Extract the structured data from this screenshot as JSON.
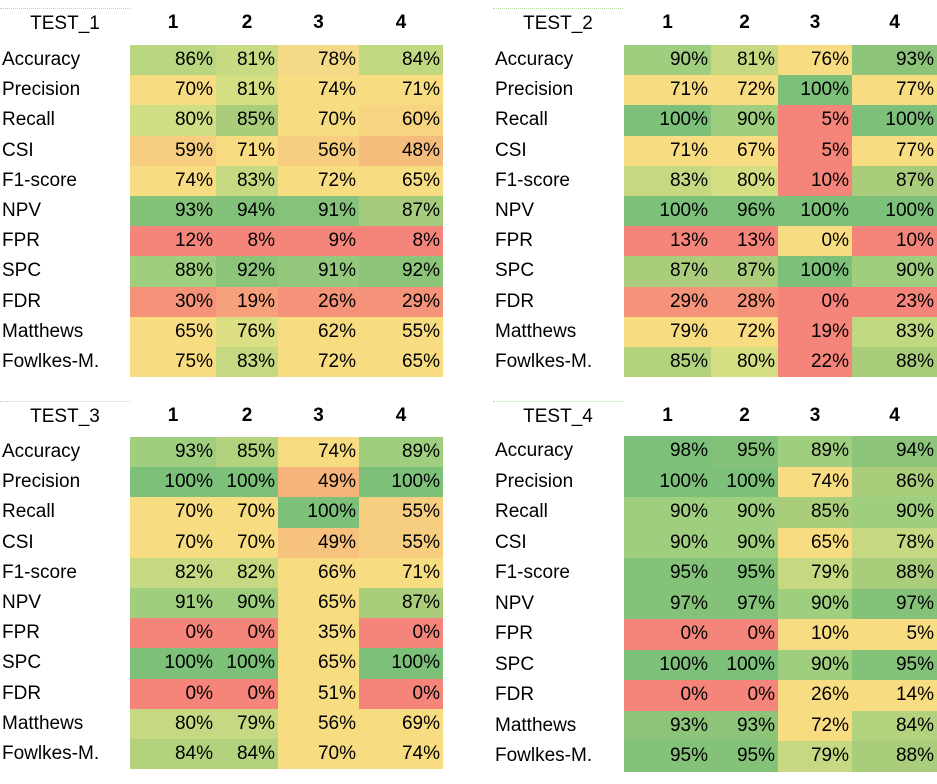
{
  "columns": [
    "1",
    "2",
    "3",
    "4"
  ],
  "colors": {
    "green_strong": "#7cc07a",
    "green": "#9fce7f",
    "yellow_green": "#c6dc84",
    "yellow": "#f8dc82",
    "orange": "#f7b47a",
    "red": "#f5857a"
  },
  "panels": [
    {
      "title": "TEST_1",
      "rows": [
        {
          "label": "Accuracy",
          "values": [
            "86%",
            "81%",
            "78%",
            "84%"
          ]
        },
        {
          "label": "Precision",
          "values": [
            "70%",
            "81%",
            "74%",
            "71%"
          ]
        },
        {
          "label": "Recall",
          "values": [
            "80%",
            "85%",
            "70%",
            "60%"
          ]
        },
        {
          "label": "CSI",
          "values": [
            "59%",
            "71%",
            "56%",
            "48%"
          ]
        },
        {
          "label": "F1-score",
          "values": [
            "74%",
            "83%",
            "72%",
            "65%"
          ]
        },
        {
          "label": "NPV",
          "values": [
            "93%",
            "94%",
            "91%",
            "87%"
          ]
        },
        {
          "label": "FPR",
          "values": [
            "12%",
            "8%",
            "9%",
            "8%"
          ]
        },
        {
          "label": "SPC",
          "values": [
            "88%",
            "92%",
            "91%",
            "92%"
          ]
        },
        {
          "label": "FDR",
          "values": [
            "30%",
            "19%",
            "26%",
            "29%"
          ]
        },
        {
          "label": "Matthews",
          "values": [
            "65%",
            "76%",
            "62%",
            "55%"
          ]
        },
        {
          "label": "Fowlkes-M.",
          "values": [
            "75%",
            "83%",
            "72%",
            "65%"
          ]
        }
      ],
      "cell_colors": [
        [
          "#b9d680",
          "#c7db82",
          "#f4d986",
          "#c0d880"
        ],
        [
          "#f8dc82",
          "#d6de84",
          "#f8dc82",
          "#f8dc82"
        ],
        [
          "#d0dd84",
          "#aacd7c",
          "#f8dc82",
          "#f6d480"
        ],
        [
          "#f7ce80",
          "#f8dc82",
          "#f7ce80",
          "#f5bd7c"
        ],
        [
          "#f8dc82",
          "#c6d982",
          "#f8dc82",
          "#f8dc82"
        ],
        [
          "#84c27a",
          "#82c179",
          "#86c27b",
          "#a4cc7c"
        ],
        [
          "#f5857a",
          "#f5857a",
          "#f5857a",
          "#f5857a"
        ],
        [
          "#9fce7f",
          "#8cc47a",
          "#94c87c",
          "#8cc47a"
        ],
        [
          "#f5937a",
          "#f7a07c",
          "#f5937a",
          "#f5937a"
        ],
        [
          "#f8dc82",
          "#dcde84",
          "#f8dc82",
          "#f8dc82"
        ],
        [
          "#f8dc82",
          "#c6d982",
          "#f8dc82",
          "#f8dc82"
        ]
      ]
    },
    {
      "title": "TEST_2",
      "rows": [
        {
          "label": "Accuracy",
          "values": [
            "90%",
            "81%",
            "76%",
            "93%"
          ]
        },
        {
          "label": "Precision",
          "values": [
            "71%",
            "72%",
            "100%",
            "77%"
          ]
        },
        {
          "label": "Recall",
          "values": [
            "100%",
            "90%",
            "5%",
            "100%"
          ]
        },
        {
          "label": "CSI",
          "values": [
            "71%",
            "67%",
            "5%",
            "77%"
          ]
        },
        {
          "label": "F1-score",
          "values": [
            "83%",
            "80%",
            "10%",
            "87%"
          ]
        },
        {
          "label": "NPV",
          "values": [
            "100%",
            "96%",
            "100%",
            "100%"
          ]
        },
        {
          "label": "FPR",
          "values": [
            "13%",
            "13%",
            "0%",
            "10%"
          ]
        },
        {
          "label": "SPC",
          "values": [
            "87%",
            "87%",
            "100%",
            "90%"
          ]
        },
        {
          "label": "FDR",
          "values": [
            "29%",
            "28%",
            "0%",
            "23%"
          ]
        },
        {
          "label": "Matthews",
          "values": [
            "79%",
            "72%",
            "19%",
            "83%"
          ]
        },
        {
          "label": "Fowlkes-M.",
          "values": [
            "85%",
            "80%",
            "22%",
            "88%"
          ]
        }
      ],
      "cell_colors": [
        [
          "#9fce7f",
          "#c6d982",
          "#f8dc82",
          "#8cc47a"
        ],
        [
          "#f8dc82",
          "#f8dc82",
          "#7cc07a",
          "#f8dc82"
        ],
        [
          "#7cc07a",
          "#9fce7f",
          "#f5857a",
          "#7cc07a"
        ],
        [
          "#f8dc82",
          "#f8dc82",
          "#f5857a",
          "#f8dc82"
        ],
        [
          "#c6d982",
          "#d6de84",
          "#f5857a",
          "#aacd7c"
        ],
        [
          "#7cc07a",
          "#7cc07a",
          "#7cc07a",
          "#7cc07a"
        ],
        [
          "#f5857a",
          "#f5857a",
          "#f8dc82",
          "#f5857a"
        ],
        [
          "#aacd7c",
          "#aacd7c",
          "#7cc07a",
          "#9fce7f"
        ],
        [
          "#f5937a",
          "#f5937a",
          "#f5857a",
          "#f5857a"
        ],
        [
          "#f8dc82",
          "#f8dc82",
          "#f5857a",
          "#c0d880"
        ],
        [
          "#b3d27e",
          "#d6de84",
          "#f5857a",
          "#aacd7c"
        ]
      ]
    },
    {
      "title": "TEST_3",
      "rows": [
        {
          "label": "Accuracy",
          "values": [
            "93%",
            "85%",
            "74%",
            "89%"
          ]
        },
        {
          "label": "Precision",
          "values": [
            "100%",
            "100%",
            "49%",
            "100%"
          ]
        },
        {
          "label": "Recall",
          "values": [
            "70%",
            "70%",
            "100%",
            "55%"
          ]
        },
        {
          "label": "CSI",
          "values": [
            "70%",
            "70%",
            "49%",
            "55%"
          ]
        },
        {
          "label": "F1-score",
          "values": [
            "82%",
            "82%",
            "66%",
            "71%"
          ]
        },
        {
          "label": "NPV",
          "values": [
            "91%",
            "90%",
            "65%",
            "87%"
          ]
        },
        {
          "label": "FPR",
          "values": [
            "0%",
            "0%",
            "35%",
            "0%"
          ]
        },
        {
          "label": "SPC",
          "values": [
            "100%",
            "100%",
            "65%",
            "100%"
          ]
        },
        {
          "label": "FDR",
          "values": [
            "0%",
            "0%",
            "51%",
            "0%"
          ]
        },
        {
          "label": "Matthews",
          "values": [
            "80%",
            "79%",
            "56%",
            "69%"
          ]
        },
        {
          "label": "Fowlkes-M.",
          "values": [
            "84%",
            "84%",
            "70%",
            "74%"
          ]
        }
      ],
      "cell_colors": [
        [
          "#9fce7f",
          "#b3d27e",
          "#f8dc82",
          "#9fce7f"
        ],
        [
          "#7cc07a",
          "#7cc07a",
          "#f7b47a",
          "#7cc07a"
        ],
        [
          "#f8dc82",
          "#f8dc82",
          "#7cc07a",
          "#f7ce80"
        ],
        [
          "#f8dc82",
          "#f8dc82",
          "#f7c27e",
          "#f7ce80"
        ],
        [
          "#c6d982",
          "#c6d982",
          "#f8dc82",
          "#f8dc82"
        ],
        [
          "#9fce7f",
          "#9fce7f",
          "#f8dc82",
          "#aacd7c"
        ],
        [
          "#f5857a",
          "#f5857a",
          "#f8dc82",
          "#f5857a"
        ],
        [
          "#7cc07a",
          "#7cc07a",
          "#f8dc82",
          "#7cc07a"
        ],
        [
          "#f5857a",
          "#f5857a",
          "#f8dc82",
          "#f5857a"
        ],
        [
          "#c6d982",
          "#c6d982",
          "#f8dc82",
          "#f8dc82"
        ],
        [
          "#b3d27e",
          "#b3d27e",
          "#f8dc82",
          "#f8dc82"
        ]
      ]
    },
    {
      "title": "TEST_4",
      "rows": [
        {
          "label": "Accuracy",
          "values": [
            "98%",
            "95%",
            "89%",
            "94%"
          ]
        },
        {
          "label": "Precision",
          "values": [
            "100%",
            "100%",
            "74%",
            "86%"
          ]
        },
        {
          "label": "Recall",
          "values": [
            "90%",
            "90%",
            "85%",
            "90%"
          ]
        },
        {
          "label": "CSI",
          "values": [
            "90%",
            "90%",
            "65%",
            "78%"
          ]
        },
        {
          "label": "F1-score",
          "values": [
            "95%",
            "95%",
            "79%",
            "88%"
          ]
        },
        {
          "label": "NPV",
          "values": [
            "97%",
            "97%",
            "90%",
            "97%"
          ]
        },
        {
          "label": "FPR",
          "values": [
            "0%",
            "0%",
            "10%",
            "5%"
          ]
        },
        {
          "label": "SPC",
          "values": [
            "100%",
            "100%",
            "90%",
            "95%"
          ]
        },
        {
          "label": "FDR",
          "values": [
            "0%",
            "0%",
            "26%",
            "14%"
          ]
        },
        {
          "label": "Matthews",
          "values": [
            "93%",
            "93%",
            "72%",
            "84%"
          ]
        },
        {
          "label": "Fowlkes-M.",
          "values": [
            "95%",
            "95%",
            "79%",
            "88%"
          ]
        }
      ],
      "cell_colors": [
        [
          "#7cc07a",
          "#84c27a",
          "#9fce7f",
          "#8cc47a"
        ],
        [
          "#7cc07a",
          "#7cc07a",
          "#f8dc82",
          "#aacd7c"
        ],
        [
          "#9fce7f",
          "#9fce7f",
          "#aacd7c",
          "#9fce7f"
        ],
        [
          "#9fce7f",
          "#9fce7f",
          "#f8dc82",
          "#c6d982"
        ],
        [
          "#84c27a",
          "#84c27a",
          "#c6d982",
          "#aacd7c"
        ],
        [
          "#84c27a",
          "#84c27a",
          "#9fce7f",
          "#84c27a"
        ],
        [
          "#f5857a",
          "#f5857a",
          "#f8dc82",
          "#f8dc82"
        ],
        [
          "#7cc07a",
          "#7cc07a",
          "#9fce7f",
          "#84c27a"
        ],
        [
          "#f5857a",
          "#f5857a",
          "#f8dc82",
          "#f8dc82"
        ],
        [
          "#8cc47a",
          "#8cc47a",
          "#f8dc82",
          "#b3d27e"
        ],
        [
          "#84c27a",
          "#84c27a",
          "#c6d982",
          "#aacd7c"
        ]
      ]
    }
  ]
}
